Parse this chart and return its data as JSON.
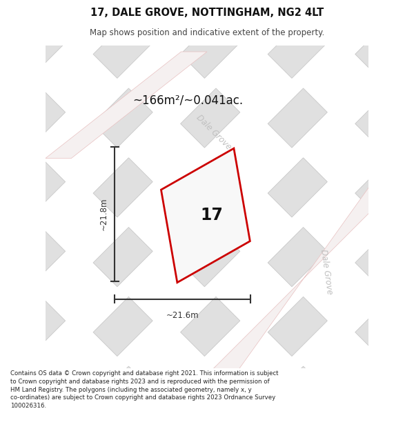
{
  "title": "17, DALE GROVE, NOTTINGHAM, NG2 4LT",
  "subtitle": "Map shows position and indicative extent of the property.",
  "footer": "Contains OS data © Crown copyright and database right 2021. This information is subject\nto Crown copyright and database rights 2023 and is reproduced with the permission of\nHM Land Registry. The polygons (including the associated geometry, namely x, y\nco-ordinates) are subject to Crown copyright and database rights 2023 Ordnance Survey\n100026316.",
  "area_label": "~166m²/~0.041ac.",
  "plot_number": "17",
  "dim_width": "~21.6m",
  "dim_height": "~21.8m",
  "street_label_1": "Dale Grove",
  "street_label_2": "Dale Grove",
  "map_bg": "#ebebeb",
  "tile_face": "#e0e0e0",
  "tile_edge": "#c8c8c8",
  "road_face": "#f5f0f0",
  "road_edge": "#e8c0c0",
  "plot_fill": "#f8f8f8",
  "plot_edge": "#cc0000",
  "dim_color": "#333333",
  "label_color": "#111111",
  "street_color": "#c0c0c0",
  "footer_color": "#222222",
  "white": "#ffffff"
}
